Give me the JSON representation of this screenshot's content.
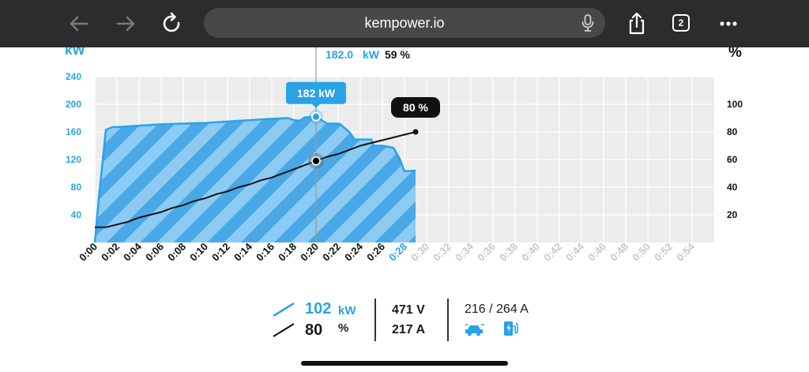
{
  "browser": {
    "url": "kempower.io",
    "tab_count": "2",
    "icons": [
      "back-arrow-icon",
      "forward-arrow-icon",
      "reload-icon",
      "microphone-icon",
      "share-icon",
      "tabs-icon",
      "more-icon"
    ]
  },
  "chart_data": {
    "type": "area",
    "y_left_label": "kW",
    "y_right_label": "%",
    "y_left_ticks": [
      "40",
      "80",
      "120",
      "160",
      "200",
      "240"
    ],
    "y_left_range": [
      0,
      240
    ],
    "y_right_ticks": [
      "20",
      "40",
      "60",
      "80",
      "100"
    ],
    "y_right_range": [
      0,
      120
    ],
    "x_ticks": [
      "0:00",
      "0:02",
      "0:04",
      "0:06",
      "0:08",
      "0:10",
      "0:12",
      "0:14",
      "0:16",
      "0:18",
      "0:20",
      "0:22",
      "0:24",
      "0:26",
      "0:28",
      "0:30",
      "0:32",
      "0:34",
      "0:36",
      "0:38",
      "0:40",
      "0:42",
      "0:44",
      "0:46",
      "0:48",
      "0:50",
      "0:52",
      "0:54"
    ],
    "x_range_minutes": [
      0,
      56
    ],
    "current_x_tick": "0:28",
    "power_series": {
      "name": "kW",
      "unit": "kW",
      "x_minutes": [
        0,
        0.4,
        1,
        1.6,
        2,
        4,
        6,
        8,
        10,
        12,
        14,
        16,
        17.5,
        18,
        18.5,
        19,
        20,
        21,
        22,
        22.2,
        23,
        23.5,
        24,
        25,
        25.2,
        26,
        27,
        27.6,
        28,
        29
      ],
      "values": [
        0,
        70,
        163,
        167,
        167,
        169,
        171,
        172,
        173,
        175,
        177,
        179,
        180,
        177,
        176,
        181,
        182,
        172,
        172,
        171,
        160,
        149,
        149,
        149,
        140,
        140,
        137,
        120,
        103,
        104
      ]
    },
    "soc_series": {
      "name": "%",
      "unit": "%",
      "x_minutes": [
        0,
        1,
        2,
        3,
        4,
        5,
        6,
        7,
        8,
        9,
        10,
        11,
        12,
        13,
        14,
        15,
        16,
        17,
        18,
        19,
        20,
        21,
        22,
        23,
        24,
        25,
        26,
        27,
        28,
        29
      ],
      "values": [
        11,
        11,
        13,
        15,
        18,
        20,
        22,
        25,
        27,
        30,
        32,
        35,
        37,
        40,
        42,
        45,
        47,
        50,
        53,
        56,
        59,
        62,
        64,
        67,
        70,
        72,
        74,
        76,
        78,
        80
      ]
    },
    "cursor": {
      "time_minutes": 20,
      "power_value": "182.0",
      "power_unit": "kW",
      "soc_value": "59 %"
    },
    "power_bubble": "182 kW",
    "soc_end_bubble": "80 %",
    "colors": {
      "power_line": "#29a3e8",
      "hatch_dark": "#4aa8e6",
      "hatch_light": "#8ccbf3",
      "grid_bg": "#ececec",
      "grid_line": "#ffffff",
      "soc_line": "#111111",
      "future_tick": "#c8c8c8",
      "current_tick": "#29a3e8",
      "label_blue": "#29a3e8"
    }
  },
  "stats": {
    "power_value": "102",
    "power_unit": "kW",
    "soc_value": "80",
    "soc_unit": "%",
    "voltage": "471 V",
    "current": "217 A",
    "limits": "216 / 264 A"
  }
}
